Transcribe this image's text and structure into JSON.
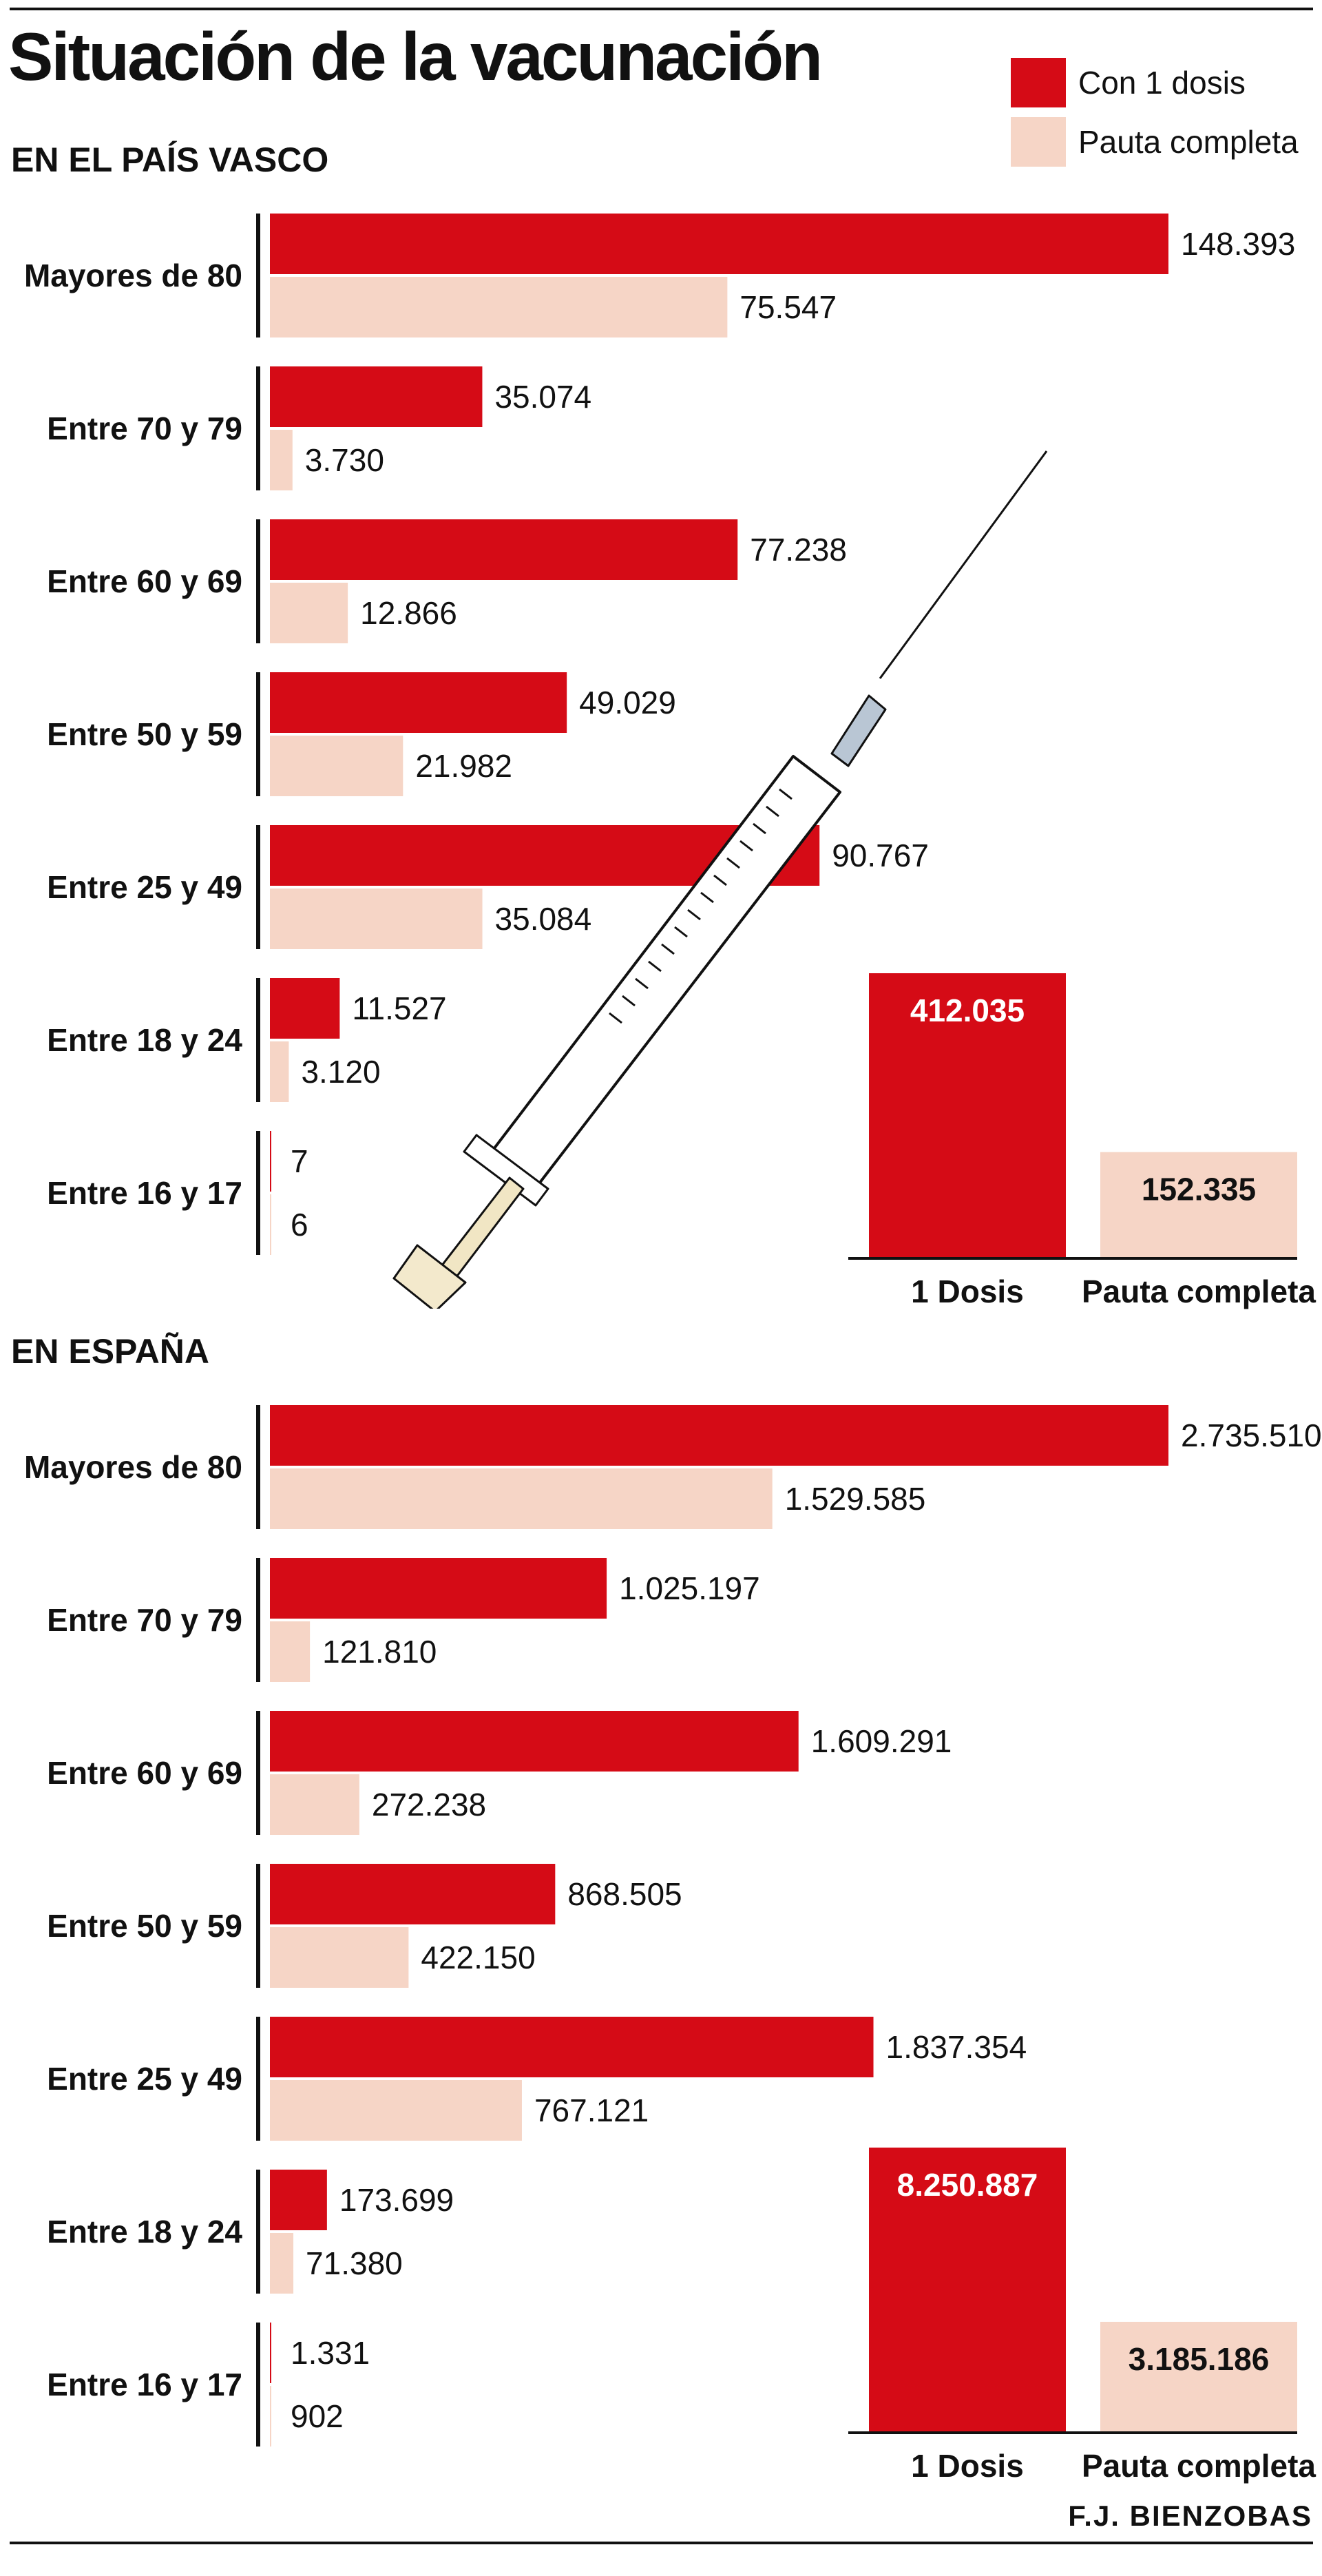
{
  "header": {
    "title": "Situación de la vacunación",
    "credit": "F.J. BIENZOBAS"
  },
  "legend": {
    "items": [
      {
        "label": "Con 1 dosis",
        "color": "#d50b16"
      },
      {
        "label": "Pauta completa",
        "color": "#f6d5c6"
      }
    ]
  },
  "sections": {
    "pais_vasco": {
      "title": "EN EL PAÍS VASCO"
    },
    "espana": {
      "title": "EN ESPAÑA"
    }
  },
  "illustration": {
    "icon": "syringe-icon"
  },
  "chart_data": [
    {
      "type": "bar",
      "orientation": "horizontal",
      "title": "EN EL PAÍS VASCO",
      "categories": [
        "Mayores de 80",
        "Entre 70 y 79",
        "Entre 60 y 69",
        "Entre 50 y 59",
        "Entre 25 y 49",
        "Entre 18 y 24",
        "Entre 16 y 17"
      ],
      "series": [
        {
          "name": "Con 1 dosis",
          "color": "#d50b16",
          "values": [
            148393,
            35074,
            77238,
            49029,
            90767,
            11527,
            7
          ],
          "labels": [
            "148.393",
            "35.074",
            "77.238",
            "49.029",
            "90.767",
            "11.527",
            "7"
          ]
        },
        {
          "name": "Pauta completa",
          "color": "#f6d5c6",
          "values": [
            75547,
            3730,
            12866,
            21982,
            35084,
            3120,
            6
          ],
          "labels": [
            "75.547",
            "3.730",
            "12.866",
            "21.982",
            "35.084",
            "3.120",
            "6"
          ]
        }
      ],
      "grid": false
    },
    {
      "type": "bar",
      "orientation": "vertical",
      "title": "",
      "categories": [
        "1 Dosis",
        "Pauta completa"
      ],
      "values": [
        412035,
        152335
      ],
      "labels": [
        "412.035",
        "152.335"
      ],
      "colors": [
        "#d50b16",
        "#f6d5c6"
      ],
      "grid": false
    },
    {
      "type": "bar",
      "orientation": "horizontal",
      "title": "EN ESPAÑA",
      "categories": [
        "Mayores de 80",
        "Entre 70 y 79",
        "Entre 60 y 69",
        "Entre 50 y 59",
        "Entre 25 y 49",
        "Entre 18 y 24",
        "Entre 16 y 17"
      ],
      "series": [
        {
          "name": "Con 1 dosis",
          "color": "#d50b16",
          "values": [
            2735510,
            1025197,
            1609291,
            868505,
            1837354,
            173699,
            1331
          ],
          "labels": [
            "2.735.510",
            "1.025.197",
            "1.609.291",
            "868.505",
            "1.837.354",
            "173.699",
            "1.331"
          ]
        },
        {
          "name": "Pauta completa",
          "color": "#f6d5c6",
          "values": [
            1529585,
            121810,
            272238,
            422150,
            767121,
            71380,
            902
          ],
          "labels": [
            "1.529.585",
            "121.810",
            "272.238",
            "422.150",
            "767.121",
            "71.380",
            "902"
          ]
        }
      ],
      "grid": false
    },
    {
      "type": "bar",
      "orientation": "vertical",
      "title": "",
      "categories": [
        "1 Dosis",
        "Pauta completa"
      ],
      "values": [
        8250887,
        3185186
      ],
      "labels": [
        "8.250.887",
        "3.185.186"
      ],
      "colors": [
        "#d50b16",
        "#f6d5c6"
      ],
      "grid": false
    }
  ]
}
